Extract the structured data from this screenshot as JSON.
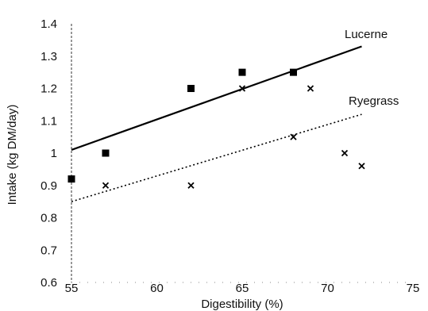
{
  "chart_data": {
    "type": "scatter",
    "title": "",
    "xlabel": "Digestibility (%)",
    "ylabel": "Intake (kg DM/day)",
    "xlim": [
      55,
      75
    ],
    "ylim": [
      0.6,
      1.4
    ],
    "x_ticks": [
      55,
      60,
      65,
      70,
      75
    ],
    "y_ticks": [
      0.6,
      0.7,
      0.8,
      0.9,
      1,
      1.1,
      1.2,
      1.3,
      1.4
    ],
    "x_tick_labels": [
      "55",
      "60",
      "65",
      "70",
      "75"
    ],
    "y_tick_labels": [
      "0.6",
      "0.7",
      "0.8",
      "0.9",
      "1",
      "1.1",
      "1.2",
      "1.3",
      "1.4"
    ],
    "grid": false,
    "series": [
      {
        "name": "Lucerne",
        "marker": "square",
        "color": "#000000",
        "points": [
          [
            55,
            0.92
          ],
          [
            57,
            1.0
          ],
          [
            62,
            1.2
          ],
          [
            65,
            1.25
          ],
          [
            68,
            1.25
          ]
        ],
        "trendline": {
          "style": "solid",
          "x": [
            55,
            72
          ],
          "y": [
            1.01,
            1.33
          ]
        }
      },
      {
        "name": "Ryegrass",
        "marker": "x",
        "color": "#000000",
        "points": [
          [
            57,
            0.9
          ],
          [
            62,
            0.9
          ],
          [
            65,
            1.2
          ],
          [
            68,
            1.05
          ],
          [
            69,
            1.2
          ],
          [
            71,
            1.0
          ],
          [
            72,
            0.96
          ]
        ],
        "trendline": {
          "style": "dotted",
          "x": [
            55,
            72
          ],
          "y": [
            0.85,
            1.12
          ]
        }
      }
    ]
  }
}
